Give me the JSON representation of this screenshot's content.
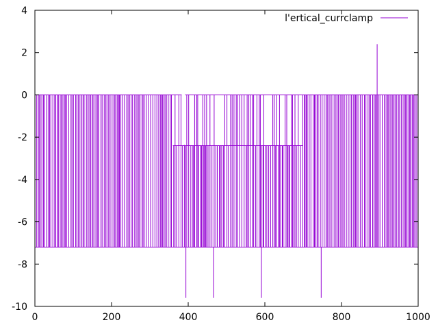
{
  "chart_data": {
    "type": "line",
    "title": "",
    "xlabel": "",
    "ylabel": "",
    "xlim": [
      0,
      1000
    ],
    "ylim": [
      -10,
      4
    ],
    "xticks": [
      0,
      200,
      400,
      600,
      800,
      1000
    ],
    "yticks": [
      -10,
      -8,
      -6,
      -4,
      -2,
      0,
      2,
      4
    ],
    "grid": false,
    "legend_position": "top-right",
    "series": [
      {
        "name": "l'ertical_currclamp",
        "color": "#9400d3",
        "base_level": 0,
        "low_level": -7.2,
        "mid_level": -2.4,
        "x": [
          0,
          1000
        ],
        "spikes": [
          {
            "x": 394,
            "y": -9.6
          },
          {
            "x": 466,
            "y": -9.6
          },
          {
            "x": 591,
            "y": -9.6
          },
          {
            "x": 747,
            "y": -9.6
          },
          {
            "x": 893,
            "y": 2.4
          }
        ]
      }
    ]
  }
}
